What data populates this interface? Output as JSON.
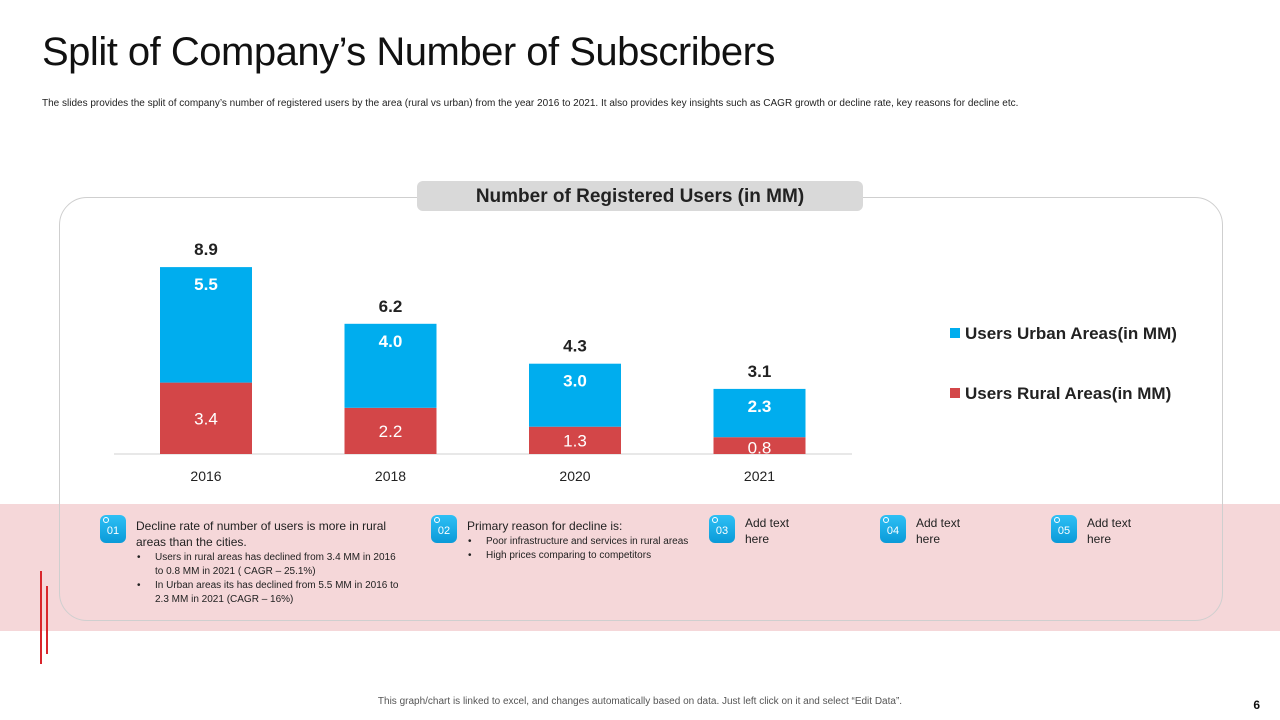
{
  "slide": {
    "title": "Split of Company’s Number of Subscribers",
    "subtitle": "The slides provides the split of company’s number of registered users by the area (rural vs urban) from the year 2016 to 2021. It also provides key insights such as CAGR growth or decline rate, key reasons for decline etc.",
    "footer": "This graph/chart is linked to excel, and changes automatically  based on data. Just left click on it and select “Edit Data”.",
    "page_number": "6"
  },
  "chart_data": {
    "type": "bar",
    "stacked": true,
    "title": "Number of Registered Users (in MM)",
    "categories": [
      "2016",
      "2018",
      "2020",
      "2021"
    ],
    "series": [
      {
        "name": "Users  Rural Areas(in MM)",
        "values": [
          3.4,
          2.2,
          1.3,
          0.8
        ],
        "color": "#d34648"
      },
      {
        "name": "Users  Urban Areas(in MM)",
        "values": [
          5.5,
          4.0,
          3.0,
          2.3
        ],
        "color": "#00adee"
      }
    ],
    "totals": [
      8.9,
      6.2,
      4.3,
      3.1
    ],
    "label_format": "0.0",
    "legend_position": "right",
    "ylim": [
      0,
      10
    ],
    "grid": false
  },
  "insights": [
    {
      "number": "01",
      "heading": "Decline rate of number of users is more in rural areas than the cities.",
      "bullets": [
        "Users in rural areas has declined from 3.4 MM in 2016 to 0.8 MM in 2021 ( CAGR – 25.1%)",
        "In Urban areas its has declined from 5.5 MM in 2016 to 2.3 MM in 2021 (CAGR – 16%)"
      ]
    },
    {
      "number": "02",
      "heading": "Primary reason for decline is:",
      "bullets": [
        "Poor infrastructure and services in rural areas",
        "High prices comparing to competitors"
      ]
    },
    {
      "number": "03",
      "heading": "Add text here",
      "bullets": []
    },
    {
      "number": "04",
      "heading": "Add text here",
      "bullets": []
    },
    {
      "number": "05",
      "heading": "Add text here",
      "bullets": []
    }
  ],
  "colors": {
    "urban": "#00adee",
    "rural": "#d34648",
    "accent": "#d9262c",
    "band": "#f5d7d9"
  }
}
